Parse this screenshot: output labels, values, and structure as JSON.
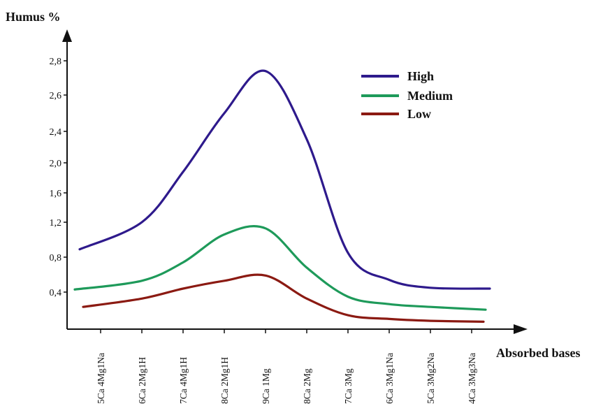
{
  "chart_data": {
    "type": "line",
    "ylabel": "Humus %",
    "xlabel": "Absorbed bases",
    "categories": [
      "5Ca 4Mg1Na",
      "6Ca 2Mg1H",
      "7Ca 4Mg1H",
      "8Ca 2Mg1H",
      "9Ca 1Mg",
      "8Ca 2Mg",
      "7Ca 3Mg",
      "6Ca 3Mg1Na",
      "5Ca 3Mg2Na",
      "4Ca 3Mg3Na"
    ],
    "y_ticks": [
      {
        "label": "0,4",
        "value": 0.4
      },
      {
        "label": "0,8",
        "value": 0.8
      },
      {
        "label": "1,2",
        "value": 1.2
      },
      {
        "label": "1,6",
        "value": 1.6
      },
      {
        "label": "2,0",
        "value": 2.0
      },
      {
        "label": "2,4",
        "value": 2.4
      },
      {
        "label": "2,6",
        "value": 2.6
      },
      {
        "label": "2,8",
        "value": 2.8
      }
    ],
    "ylim": [
      0,
      2.9
    ],
    "legend_position": "top-right",
    "grid": false,
    "series": [
      {
        "name": "High",
        "color": "#2e1a8c",
        "values": [
          0.89,
          1.2,
          1.88,
          2.5,
          2.74,
          2.3,
          0.85,
          0.54,
          0.45,
          0.44
        ]
      },
      {
        "name": "Medium",
        "color": "#1e9a5a",
        "values": [
          0.43,
          0.53,
          0.74,
          1.06,
          1.13,
          0.68,
          0.35,
          0.27,
          0.24,
          0.21
        ]
      },
      {
        "name": "Low",
        "color": "#8b1a12",
        "values": [
          0.24,
          0.33,
          0.44,
          0.53,
          0.59,
          0.33,
          0.15,
          0.11,
          0.09,
          0.08
        ]
      }
    ]
  }
}
